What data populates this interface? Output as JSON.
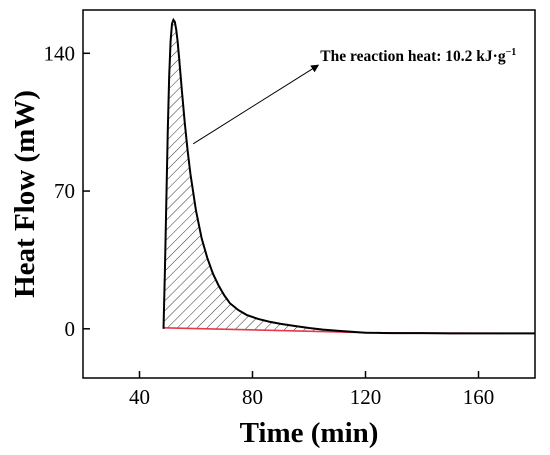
{
  "chart_data": {
    "type": "area",
    "title": "",
    "xlabel": "Time (min)",
    "ylabel": "Heat Flow (mW)",
    "xlim": [
      20,
      180
    ],
    "ylim": [
      -25,
      162
    ],
    "xticks": [
      40,
      80,
      120,
      160
    ],
    "yticks": [
      0,
      70,
      140
    ],
    "grid": false,
    "legend": "none",
    "colors": {
      "curve": "#000000",
      "baseline": "#e8384a",
      "hatch": "#000000"
    },
    "series": [
      {
        "name": "",
        "type": "line",
        "x": [
          48.5,
          49.0,
          49.5,
          50.0,
          50.5,
          51.0,
          51.5,
          52.0,
          52.5,
          53.0,
          53.5,
          54.0,
          55.0,
          56.0,
          57.0,
          58.0,
          60.0,
          62.0,
          64.0,
          66.0,
          68.0,
          70.0,
          72.0,
          75.0,
          78.0,
          82.0,
          86.0,
          90.0,
          95.0,
          100.0,
          105.0,
          110.0,
          115.0,
          120.0,
          125.0,
          130.0,
          140.0,
          150.0,
          160.0,
          170.0,
          180.0
        ],
        "y": [
          0,
          30,
          65,
          100,
          128,
          146,
          155,
          157,
          156,
          152,
          146,
          138,
          121,
          105,
          91,
          79,
          60,
          46,
          36,
          28,
          22,
          17,
          13,
          9.5,
          7,
          5,
          3.6,
          2.5,
          1.4,
          0.4,
          -0.4,
          -1.0,
          -1.5,
          -2.0,
          -2.1,
          -2.2,
          -2.2,
          -2.3,
          -2.3,
          -2.3,
          -2.3
        ]
      },
      {
        "name": "",
        "type": "baseline",
        "x": [
          48.5,
          125.0,
          180.0
        ],
        "y": [
          0.5,
          -2.1,
          -2.3
        ]
      }
    ],
    "annotations": [
      {
        "text": "The reaction heat: 10.2 kJ·g",
        "superscript": "−1",
        "pointer_to": {
          "x": 59,
          "y": 94
        },
        "text_anchor_at": {
          "x": 104,
          "y": 136
        }
      }
    ]
  }
}
